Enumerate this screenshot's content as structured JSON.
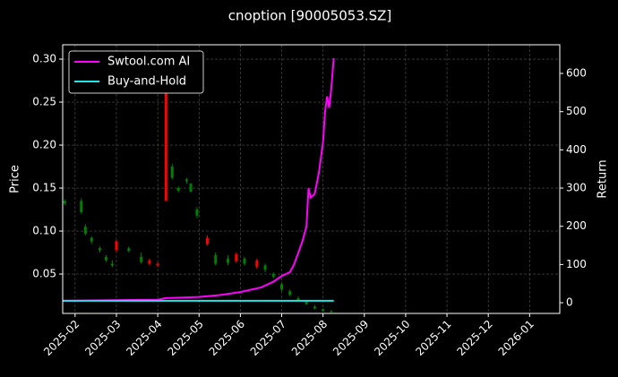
{
  "chart_data": {
    "type": "candlestick",
    "title": "cnoption [90005053.SZ]",
    "ylabel": "Price",
    "y2label": "Return",
    "background": "#000000",
    "grid": true,
    "legend": "upper left",
    "up_color": "#ff0000",
    "down_color": "#008000",
    "xlim": [
      -0.3,
      11.73
    ],
    "xticks": [
      {
        "value": 0,
        "label": "2025-02"
      },
      {
        "value": 1,
        "label": "2025-03"
      },
      {
        "value": 2,
        "label": "2025-04"
      },
      {
        "value": 3,
        "label": "2025-05"
      },
      {
        "value": 4,
        "label": "2025-06"
      },
      {
        "value": 5,
        "label": "2025-07"
      },
      {
        "value": 6,
        "label": "2025-08"
      },
      {
        "value": 7,
        "label": "2025-09"
      },
      {
        "value": 8,
        "label": "2025-10"
      },
      {
        "value": 9,
        "label": "2025-11"
      },
      {
        "value": 10,
        "label": "2025-12"
      },
      {
        "value": 11,
        "label": "2026-01"
      }
    ],
    "ylim": [
      0.0042,
      0.3167
    ],
    "yticks": [
      0.05,
      {
        "value": 0.1,
        "label": "0.10"
      },
      0.15,
      {
        "value": 0.2,
        "label": "0.20"
      },
      0.25,
      {
        "value": 0.3,
        "label": "0.30"
      }
    ],
    "y2lim": [
      -28,
      675
    ],
    "y2ticks": [
      0,
      100,
      200,
      300,
      400,
      500,
      600
    ],
    "candles": {
      "x": [
        -0.25,
        0.15,
        0.25,
        0.4,
        0.6,
        0.75,
        0.9,
        1.0,
        1.3,
        1.6,
        1.8,
        2.0,
        2.2,
        2.35,
        2.5,
        2.7,
        2.8,
        2.95,
        3.2,
        3.4,
        3.7,
        3.9,
        4.1,
        4.4,
        4.6,
        4.8,
        5.0,
        5.2,
        5.4,
        5.6,
        5.8,
        6.0,
        6.2
      ],
      "open": [
        0.135,
        0.135,
        0.105,
        0.092,
        0.08,
        0.07,
        0.062,
        0.078,
        0.08,
        0.07,
        0.062,
        0.06,
        0.135,
        0.175,
        0.15,
        0.16,
        0.155,
        0.125,
        0.085,
        0.072,
        0.068,
        0.065,
        0.068,
        0.058,
        0.06,
        0.05,
        0.038,
        0.03,
        0.022,
        0.018,
        0.012,
        0.009,
        0.007
      ],
      "high": [
        0.137,
        0.138,
        0.108,
        0.094,
        0.082,
        0.072,
        0.066,
        0.09,
        0.082,
        0.075,
        0.068,
        0.064,
        0.285,
        0.178,
        0.152,
        0.162,
        0.156,
        0.128,
        0.095,
        0.075,
        0.072,
        0.075,
        0.07,
        0.068,
        0.062,
        0.052,
        0.04,
        0.032,
        0.024,
        0.02,
        0.014,
        0.01,
        0.008
      ],
      "low": [
        0.13,
        0.12,
        0.095,
        0.085,
        0.075,
        0.064,
        0.058,
        0.076,
        0.075,
        0.062,
        0.06,
        0.058,
        0.135,
        0.16,
        0.145,
        0.155,
        0.145,
        0.115,
        0.083,
        0.06,
        0.06,
        0.063,
        0.06,
        0.056,
        0.052,
        0.045,
        0.03,
        0.024,
        0.018,
        0.014,
        0.009,
        0.006,
        0.005
      ],
      "close": [
        0.132,
        0.122,
        0.097,
        0.088,
        0.078,
        0.066,
        0.06,
        0.088,
        0.077,
        0.064,
        0.066,
        0.062,
        0.28,
        0.162,
        0.147,
        0.158,
        0.146,
        0.118,
        0.092,
        0.062,
        0.063,
        0.073,
        0.062,
        0.066,
        0.055,
        0.047,
        0.032,
        0.026,
        0.02,
        0.015,
        0.01,
        0.007,
        0.006
      ]
    },
    "series": [
      {
        "name": "Swtool.com AI",
        "color": "#ff00ff",
        "axis": "y2",
        "x": [
          -0.3,
          2.0,
          2.2,
          3.0,
          3.5,
          4.0,
          4.5,
          4.8,
          5.0,
          5.2,
          5.3,
          5.4,
          5.5,
          5.6,
          5.65,
          5.7,
          5.8,
          5.9,
          6.0,
          6.05,
          6.1,
          6.15,
          6.2,
          6.26
        ],
        "values": [
          5,
          8,
          12,
          15,
          20,
          28,
          40,
          55,
          70,
          80,
          100,
          130,
          160,
          200,
          300,
          275,
          285,
          340,
          420,
          500,
          540,
          510,
          560,
          640
        ]
      },
      {
        "name": "Buy-and-Hold",
        "color": "#22e5e5",
        "axis": "y2",
        "x": [
          -0.3,
          6.26
        ],
        "values": [
          5,
          5
        ]
      }
    ]
  }
}
